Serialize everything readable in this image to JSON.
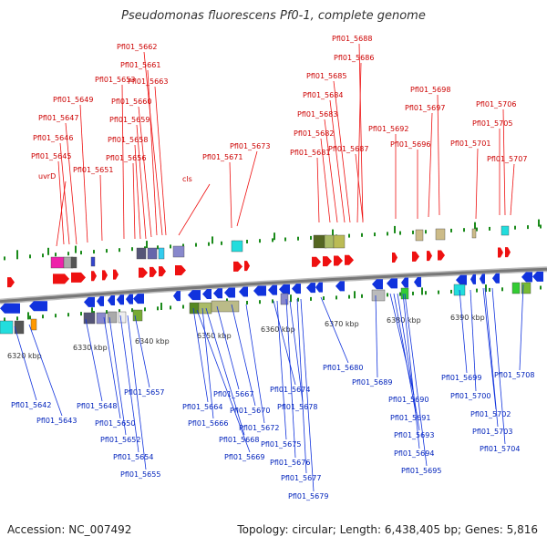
{
  "title": "Pseudomonas fluorescens Pf0-1, complete genome",
  "footer": {
    "accession": "Accession: NC_007492",
    "summary": "Topology: circular; Length: 6,438,405 bp; Genes: 5,816"
  },
  "colors": {
    "forward": "#ee1111",
    "reverse": "#1133dd",
    "backbone": "#888888",
    "tick": "#1a8a1a"
  },
  "kbp_ticks": [
    "6320 kbp",
    "6330 kbp",
    "6340 kbp",
    "6350 kbp",
    "6360 kbp",
    "6370 kbp",
    "6380 kbp",
    "6390 kbp"
  ],
  "forward_genes": [
    "Pfl01_5662",
    "Pfl01_5661",
    "Pfl01_5653",
    "Pfl01_5663",
    "Pfl01_5649",
    "Pfl01_5660",
    "Pfl01_5647",
    "Pfl01_5659",
    "Pfl01_5646",
    "Pfl01_5658",
    "Pfl01_5645",
    "Pfl01_5656",
    "Pfl01_5651",
    "uvrD",
    "cls",
    "Pfl01_5673",
    "Pfl01_5671",
    "Pfl01_5688",
    "Pfl01_5686",
    "Pfl01_5685",
    "Pfl01_5684",
    "Pfl01_5683",
    "Pfl01_5682",
    "Pfl01_5681",
    "Pfl01_5687",
    "Pfl01_5692",
    "Pfl01_5698",
    "Pfl01_5697",
    "Pfl01_5696",
    "Pfl01_5706",
    "Pfl01_5705",
    "Pfl01_5701",
    "Pfl01_5707"
  ],
  "reverse_genes": [
    "Pfl01_5642",
    "Pfl01_5643",
    "Pfl01_5648",
    "Pfl01_5650",
    "Pfl01_5652",
    "Pfl01_5654",
    "Pfl01_5655",
    "Pfl01_5657",
    "Pfl01_5664",
    "Pfl01_5666",
    "Pfl01_5667",
    "Pfl01_5668",
    "Pfl01_5669",
    "Pfl01_5670",
    "Pfl01_5672",
    "Pfl01_5674",
    "Pfl01_5675",
    "Pfl01_5676",
    "Pfl01_5677",
    "Pfl01_5678",
    "Pfl01_5679",
    "Pfl01_5680",
    "Pfl01_5689",
    "Pfl01_5690",
    "Pfl01_5691",
    "Pfl01_5693",
    "Pfl01_5694",
    "Pfl01_5695",
    "Pfl01_5699",
    "Pfl01_5700",
    "Pfl01_5702",
    "Pfl01_5703",
    "Pfl01_5704",
    "Pfl01_5708"
  ]
}
